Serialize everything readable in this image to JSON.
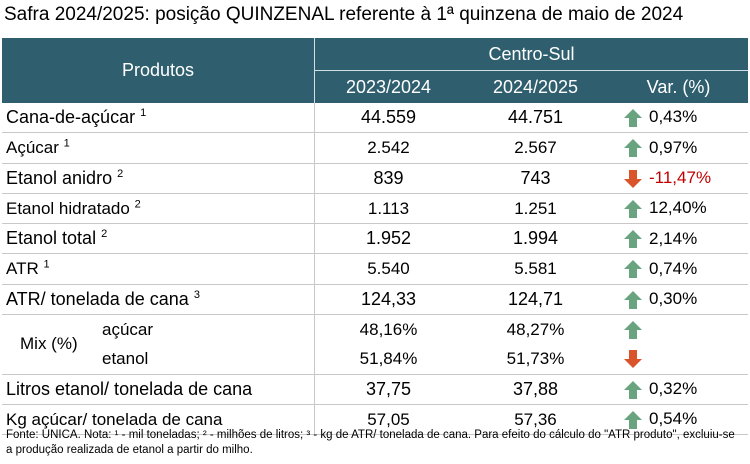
{
  "title": "Safra 2024/2025: posição QUINZENAL referente à 1ª quinzena de maio de 2024",
  "header": {
    "produtos": "Produtos",
    "region": "Centro-Sul",
    "col1": "2023/2024",
    "col2": "2024/2025",
    "var": "Var. (%)"
  },
  "rows": [
    {
      "label": "Cana-de-açúcar",
      "sup": "1",
      "v1": "44.559",
      "v2": "44.751",
      "var": "0,43%",
      "dir": "up"
    },
    {
      "label": "Açúcar",
      "sup": "1",
      "v1": "2.542",
      "v2": "2.567",
      "var": "0,97%",
      "dir": "up"
    },
    {
      "label": "Etanol anidro",
      "sup": "2",
      "v1": "839",
      "v2": "743",
      "var": "-11,47%",
      "dir": "down"
    },
    {
      "label": "Etanol hidratado",
      "sup": "2",
      "v1": "1.113",
      "v2": "1.251",
      "var": "12,40%",
      "dir": "up"
    },
    {
      "label": "Etanol total",
      "sup": "2",
      "v1": "1.952",
      "v2": "1.994",
      "var": "2,14%",
      "dir": "up"
    },
    {
      "label": "ATR",
      "sup": "1",
      "v1": "5.540",
      "v2": "5.581",
      "var": "0,74%",
      "dir": "up"
    },
    {
      "label": "ATR/ tonelada de cana",
      "sup": "3",
      "v1": "124,33",
      "v2": "124,71",
      "var": "0,30%",
      "dir": "up"
    }
  ],
  "mix": {
    "label": "Mix (%)",
    "rows": [
      {
        "label": "açúcar",
        "v1": "48,16%",
        "v2": "48,27%",
        "dir": "up"
      },
      {
        "label": "etanol",
        "v1": "51,84%",
        "v2": "51,73%",
        "dir": "down"
      }
    ]
  },
  "bottom_rows": [
    {
      "label": "Litros etanol/ tonelada de cana",
      "v1": "37,75",
      "v2": "37,88",
      "var": "0,32%",
      "dir": "up"
    },
    {
      "label": "Kg açúcar/ tonelada de cana",
      "v1": "57,05",
      "v2": "57,36",
      "var": "0,54%",
      "dir": "up"
    }
  ],
  "note": "Fonte: UNICA. Nota: ¹ - mil toneladas; ² - milhões de litros; ³ - kg de ATR/ tonelada de cana. Para efeito do cálculo do \"ATR produto\", excluiu-se a produção realizada de etanol a partir do milho.",
  "colors": {
    "header_bg": "#2f5f6e",
    "up": "#6aa37f",
    "down": "#d9542b",
    "negative_text": "#c00000"
  }
}
